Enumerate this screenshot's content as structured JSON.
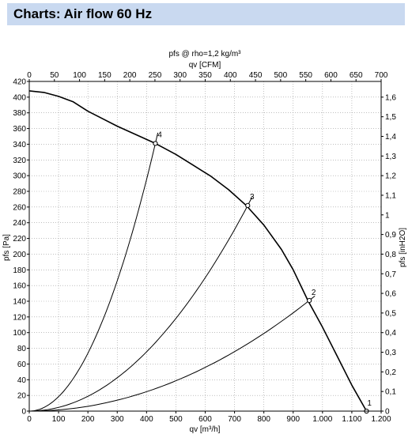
{
  "header": {
    "title": "Charts: Air flow 60 Hz"
  },
  "chart_data": {
    "type": "line",
    "title": "pfs @ rho=1,2 kg/m³",
    "xlabel": "qv [m³/h]",
    "ylabel": "pfs [Pa]",
    "x2label": "qv [CFM]",
    "y2label": "pfs [inH2O]",
    "xlim": [
      0,
      1200
    ],
    "ylim": [
      0,
      420
    ],
    "x2lim": [
      0,
      700
    ],
    "y2lim": [
      0,
      1.68
    ],
    "x_ticks": [
      "0",
      "100",
      "200",
      "300",
      "400",
      "500",
      "600",
      "700",
      "800",
      "900",
      "1.000",
      "1.100",
      "1.200"
    ],
    "y_ticks": [
      "0",
      "20",
      "40",
      "60",
      "80",
      "100",
      "120",
      "140",
      "160",
      "180",
      "200",
      "220",
      "240",
      "260",
      "280",
      "300",
      "320",
      "340",
      "360",
      "380",
      "400",
      "420"
    ],
    "x2_ticks": [
      "0",
      "50",
      "100",
      "150",
      "200",
      "250",
      "300",
      "350",
      "400",
      "450",
      "500",
      "550",
      "600",
      "650",
      "700"
    ],
    "y2_ticks": [
      "0",
      "0,1",
      "0,2",
      "0,3",
      "0,4",
      "0,5",
      "0,6",
      "0,7",
      "0,8",
      "0,9",
      "1",
      "1,1",
      "1,2",
      "1,3",
      "1,4",
      "1,5",
      "1,6"
    ],
    "grid": true,
    "fan_curve": {
      "x": [
        0,
        50,
        100,
        150,
        200,
        300,
        430,
        500,
        560,
        620,
        680,
        740,
        800,
        860,
        900,
        950,
        1000,
        1050,
        1100,
        1150
      ],
      "y": [
        408,
        406,
        401,
        394,
        382,
        363,
        341,
        327,
        313,
        299,
        282,
        262,
        237,
        206,
        180,
        141,
        107,
        70,
        33,
        0
      ]
    },
    "system_curves": [
      {
        "label": "4",
        "point": [
          430,
          341
        ],
        "label_pos": [
          445,
          352
        ]
      },
      {
        "label": "3",
        "point": [
          745,
          262
        ],
        "label_pos": [
          760,
          273
        ]
      },
      {
        "label": "2",
        "point": [
          955,
          141
        ],
        "label_pos": [
          970,
          151
        ]
      },
      {
        "label": "1",
        "point": [
          1150,
          0
        ],
        "label_pos": [
          1160,
          10
        ]
      }
    ],
    "colors": {
      "line": "#000000",
      "grid": "#999999",
      "header_bg": "#c9d9f0"
    }
  }
}
